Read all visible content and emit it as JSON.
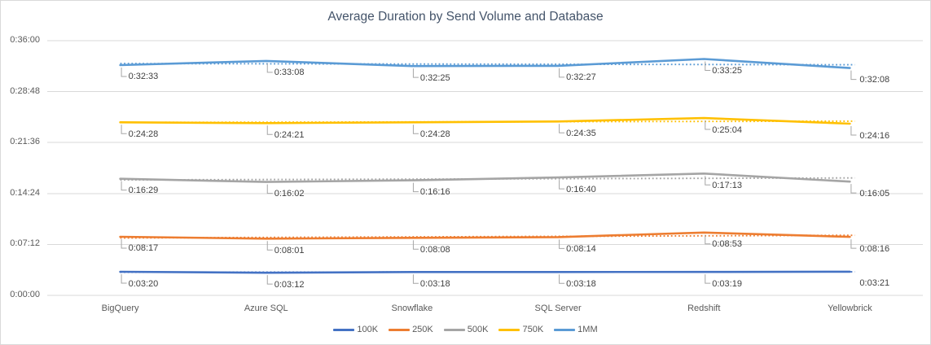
{
  "chart_data": {
    "type": "line",
    "title": "Average Duration by Send Volume and Database",
    "categories": [
      "BigQuery",
      "Azure SQL",
      "Snowflake",
      "SQL Server",
      "Redshift",
      "Yellowbrick"
    ],
    "y_axis": {
      "ticks_top_to_bottom": [
        "0:36:00",
        "0:28:48",
        "0:21:36",
        "0:14:24",
        "0:07:12",
        "0:00:00"
      ],
      "min_seconds": 0,
      "max_seconds": 2160,
      "tick_interval_seconds": 432,
      "grid": "horizontal"
    },
    "series": [
      {
        "name": "100K",
        "color": "#4472C4",
        "trendline": "dotted",
        "last_label_elbow": false,
        "labels": [
          "0:03:20",
          "0:03:12",
          "0:03:18",
          "0:03:18",
          "0:03:19",
          "0:03:21"
        ],
        "values_seconds": [
          200,
          192,
          198,
          198,
          199,
          201
        ]
      },
      {
        "name": "250K",
        "color": "#ED7D31",
        "trendline": "dotted",
        "last_label_elbow": true,
        "labels": [
          "0:08:17",
          "0:08:01",
          "0:08:08",
          "0:08:14",
          "0:08:53",
          "0:08:16"
        ],
        "values_seconds": [
          497,
          481,
          488,
          494,
          533,
          496
        ]
      },
      {
        "name": "500K",
        "color": "#A5A5A5",
        "trendline": "dotted",
        "last_label_elbow": true,
        "labels": [
          "0:16:29",
          "0:16:02",
          "0:16:16",
          "0:16:40",
          "0:17:13",
          "0:16:05"
        ],
        "values_seconds": [
          989,
          962,
          976,
          1000,
          1033,
          965
        ]
      },
      {
        "name": "750K",
        "color": "#FFC000",
        "trendline": "dotted",
        "last_label_elbow": true,
        "labels": [
          "0:24:28",
          "0:24:21",
          "0:24:28",
          "0:24:35",
          "0:25:04",
          "0:24:16"
        ],
        "values_seconds": [
          1468,
          1461,
          1468,
          1475,
          1504,
          1456
        ]
      },
      {
        "name": "1MM",
        "color": "#5B9BD5",
        "trendline": "dotted",
        "last_label_elbow": true,
        "labels": [
          "0:32:33",
          "0:33:08",
          "0:32:25",
          "0:32:27",
          "0:33:25",
          "0:32:08"
        ],
        "values_seconds": [
          1953,
          1988,
          1945,
          1947,
          2005,
          1928
        ]
      }
    ],
    "legend": {
      "position": "bottom",
      "entries": [
        "100K",
        "250K",
        "500K",
        "750K",
        "1MM"
      ]
    },
    "colors": {
      "title_text": "#44546A",
      "axis_text": "#595959",
      "data_label_text": "#404040",
      "gridline": "#D9D9D9",
      "leader_line": "#A6A6A6",
      "chart_border": "#D9D9D9",
      "background": "#FFFFFF"
    }
  }
}
